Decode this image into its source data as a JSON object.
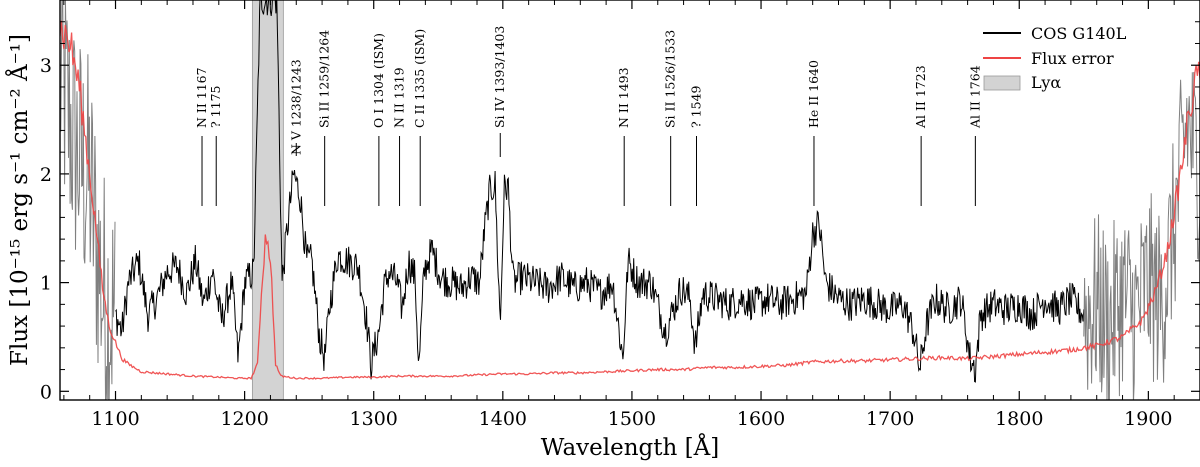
{
  "chart_data": {
    "type": "line",
    "xlabel": "Wavelength [Å]",
    "ylabel": "Flux [10⁻¹⁵ erg s⁻¹ cm⁻² Å⁻¹]",
    "xlim": [
      1057,
      1940
    ],
    "ylim": [
      -0.08,
      3.6
    ],
    "x_ticks": [
      1100,
      1200,
      1300,
      1400,
      1500,
      1600,
      1700,
      1800,
      1900
    ],
    "y_ticks": [
      0,
      1,
      2,
      3
    ],
    "x_tick_labels": [
      "1100",
      "1200",
      "1300",
      "1400",
      "1500",
      "1600",
      "1700",
      "1800",
      "1900"
    ],
    "y_tick_labels": [
      "0",
      "1",
      "2",
      "3"
    ],
    "legend_position": "top-right",
    "series": [
      {
        "name": "COS G140L",
        "color": "#000000",
        "low_snr_color": "#808080",
        "low_snr_ranges": [
          [
            1057,
            1100
          ],
          [
            1850,
            1940
          ]
        ],
        "points": [
          [
            1057,
            2.9
          ],
          [
            1070,
            2.2
          ],
          [
            1080,
            1.9
          ],
          [
            1090,
            0.9
          ],
          [
            1100,
            0.7
          ],
          [
            1105,
            0.55
          ],
          [
            1110,
            1.0
          ],
          [
            1118,
            1.2
          ],
          [
            1125,
            0.7
          ],
          [
            1132,
            0.85
          ],
          [
            1140,
            1.1
          ],
          [
            1148,
            1.15
          ],
          [
            1155,
            0.9
          ],
          [
            1162,
            1.2
          ],
          [
            1168,
            0.8
          ],
          [
            1175,
            1.1
          ],
          [
            1182,
            0.65
          ],
          [
            1190,
            1.0
          ],
          [
            1195,
            0.3
          ],
          [
            1200,
            1.0
          ],
          [
            1207,
            1.1
          ],
          [
            1212,
            3.6
          ],
          [
            1225,
            3.6
          ],
          [
            1229,
            1.0
          ],
          [
            1233,
            1.5
          ],
          [
            1238,
            2.0
          ],
          [
            1243,
            1.8
          ],
          [
            1248,
            1.2
          ],
          [
            1252,
            1.2
          ],
          [
            1258,
            0.5
          ],
          [
            1262,
            0.3
          ],
          [
            1266,
            0.8
          ],
          [
            1272,
            1.25
          ],
          [
            1280,
            1.2
          ],
          [
            1288,
            1.15
          ],
          [
            1294,
            0.7
          ],
          [
            1298,
            0.25
          ],
          [
            1304,
            0.55
          ],
          [
            1308,
            0.95
          ],
          [
            1312,
            1.1
          ],
          [
            1318,
            1.0
          ],
          [
            1322,
            0.75
          ],
          [
            1327,
            1.2
          ],
          [
            1332,
            1.05
          ],
          [
            1335,
            0.2
          ],
          [
            1339,
            1.1
          ],
          [
            1345,
            1.3
          ],
          [
            1352,
            1.05
          ],
          [
            1360,
            1.0
          ],
          [
            1368,
            0.95
          ],
          [
            1375,
            1.05
          ],
          [
            1382,
            1.0
          ],
          [
            1386,
            1.5
          ],
          [
            1390,
            1.85
          ],
          [
            1394,
            1.9
          ],
          [
            1398,
            0.6
          ],
          [
            1401,
            1.85
          ],
          [
            1404,
            1.9
          ],
          [
            1408,
            1.0
          ],
          [
            1415,
            1.05
          ],
          [
            1425,
            1.0
          ],
          [
            1435,
            0.95
          ],
          [
            1445,
            1.05
          ],
          [
            1455,
            0.95
          ],
          [
            1465,
            1.0
          ],
          [
            1475,
            0.9
          ],
          [
            1485,
            1.0
          ],
          [
            1493,
            0.3
          ],
          [
            1497,
            1.2
          ],
          [
            1505,
            1.0
          ],
          [
            1515,
            1.0
          ],
          [
            1526,
            0.55
          ],
          [
            1532,
            0.75
          ],
          [
            1538,
            0.95
          ],
          [
            1545,
            0.85
          ],
          [
            1549,
            0.4
          ],
          [
            1555,
            0.9
          ],
          [
            1565,
            0.85
          ],
          [
            1575,
            0.8
          ],
          [
            1585,
            0.85
          ],
          [
            1595,
            0.8
          ],
          [
            1605,
            0.85
          ],
          [
            1615,
            0.8
          ],
          [
            1625,
            0.85
          ],
          [
            1635,
            0.9
          ],
          [
            1640,
            1.45
          ],
          [
            1645,
            1.55
          ],
          [
            1650,
            1.0
          ],
          [
            1660,
            0.85
          ],
          [
            1670,
            0.8
          ],
          [
            1680,
            0.85
          ],
          [
            1690,
            0.8
          ],
          [
            1700,
            0.75
          ],
          [
            1710,
            0.8
          ],
          [
            1718,
            0.55
          ],
          [
            1723,
            0.2
          ],
          [
            1728,
            0.6
          ],
          [
            1735,
            0.85
          ],
          [
            1745,
            0.75
          ],
          [
            1755,
            0.85
          ],
          [
            1762,
            0.3
          ],
          [
            1766,
            0.2
          ],
          [
            1770,
            0.7
          ],
          [
            1780,
            0.8
          ],
          [
            1790,
            0.75
          ],
          [
            1800,
            0.8
          ],
          [
            1810,
            0.7
          ],
          [
            1820,
            0.85
          ],
          [
            1830,
            0.75
          ],
          [
            1840,
            0.85
          ],
          [
            1850,
            0.7
          ],
          [
            1860,
            0.8
          ],
          [
            1870,
            0.6
          ],
          [
            1880,
            0.9
          ],
          [
            1890,
            0.7
          ],
          [
            1900,
            1.0
          ],
          [
            1910,
            0.8
          ],
          [
            1920,
            1.5
          ],
          [
            1930,
            2.5
          ],
          [
            1940,
            2.0
          ]
        ]
      },
      {
        "name": "Flux error",
        "color": "#ee4444",
        "points": [
          [
            1057,
            3.35
          ],
          [
            1065,
            3.2
          ],
          [
            1072,
            2.8
          ],
          [
            1078,
            2.2
          ],
          [
            1085,
            1.5
          ],
          [
            1090,
            0.95
          ],
          [
            1095,
            0.6
          ],
          [
            1100,
            0.45
          ],
          [
            1105,
            0.3
          ],
          [
            1110,
            0.25
          ],
          [
            1120,
            0.18
          ],
          [
            1140,
            0.16
          ],
          [
            1160,
            0.14
          ],
          [
            1180,
            0.13
          ],
          [
            1195,
            0.12
          ],
          [
            1205,
            0.12
          ],
          [
            1210,
            0.25
          ],
          [
            1213,
            0.9
          ],
          [
            1216,
            1.4
          ],
          [
            1218,
            1.42
          ],
          [
            1221,
            1.0
          ],
          [
            1224,
            0.25
          ],
          [
            1228,
            0.14
          ],
          [
            1240,
            0.12
          ],
          [
            1260,
            0.12
          ],
          [
            1280,
            0.13
          ],
          [
            1300,
            0.13
          ],
          [
            1320,
            0.14
          ],
          [
            1340,
            0.14
          ],
          [
            1360,
            0.14
          ],
          [
            1380,
            0.15
          ],
          [
            1400,
            0.16
          ],
          [
            1420,
            0.16
          ],
          [
            1440,
            0.17
          ],
          [
            1460,
            0.17
          ],
          [
            1480,
            0.18
          ],
          [
            1500,
            0.19
          ],
          [
            1520,
            0.2
          ],
          [
            1540,
            0.2
          ],
          [
            1560,
            0.22
          ],
          [
            1580,
            0.22
          ],
          [
            1600,
            0.23
          ],
          [
            1620,
            0.24
          ],
          [
            1640,
            0.27
          ],
          [
            1660,
            0.28
          ],
          [
            1680,
            0.28
          ],
          [
            1700,
            0.29
          ],
          [
            1720,
            0.3
          ],
          [
            1740,
            0.31
          ],
          [
            1760,
            0.3
          ],
          [
            1780,
            0.32
          ],
          [
            1800,
            0.34
          ],
          [
            1820,
            0.36
          ],
          [
            1840,
            0.38
          ],
          [
            1860,
            0.42
          ],
          [
            1880,
            0.5
          ],
          [
            1895,
            0.65
          ],
          [
            1905,
            0.9
          ],
          [
            1915,
            1.3
          ],
          [
            1925,
            2.0
          ],
          [
            1932,
            2.6
          ],
          [
            1940,
            3.0
          ]
        ]
      }
    ],
    "shaded_regions": [
      {
        "name": "Lyα",
        "x0": 1206,
        "x1": 1230,
        "color": "#d3d3d3"
      }
    ],
    "line_markers": [
      {
        "label": "N II 1167",
        "x": 1167,
        "stack": 0
      },
      {
        "label": "? 1175",
        "x": 1178,
        "stack": 1
      },
      {
        "label": "N V 1238/1243",
        "x": 1240,
        "stack": 0
      },
      {
        "label": "Si II 1259/1264",
        "x": 1262,
        "stack": 0
      },
      {
        "label": "O I 1304 (ISM)",
        "x": 1304,
        "stack": 0
      },
      {
        "label": "N II 1319",
        "x": 1320,
        "stack": 0
      },
      {
        "label": "C II 1335 (ISM)",
        "x": 1336,
        "stack": 0
      },
      {
        "label": "Si IV 1393/1403",
        "x": 1398,
        "stack": 0
      },
      {
        "label": "N II 1493",
        "x": 1494,
        "stack": 0
      },
      {
        "label": "Si II 1526/1533",
        "x": 1530,
        "stack": 0
      },
      {
        "label": "? 1549",
        "x": 1550,
        "stack": 0
      },
      {
        "label": "He II 1640",
        "x": 1641,
        "stack": 0
      },
      {
        "label": "Al II 1723",
        "x": 1724,
        "stack": 0
      },
      {
        "label": "Al II 1764",
        "x": 1766,
        "stack": 0
      }
    ]
  }
}
